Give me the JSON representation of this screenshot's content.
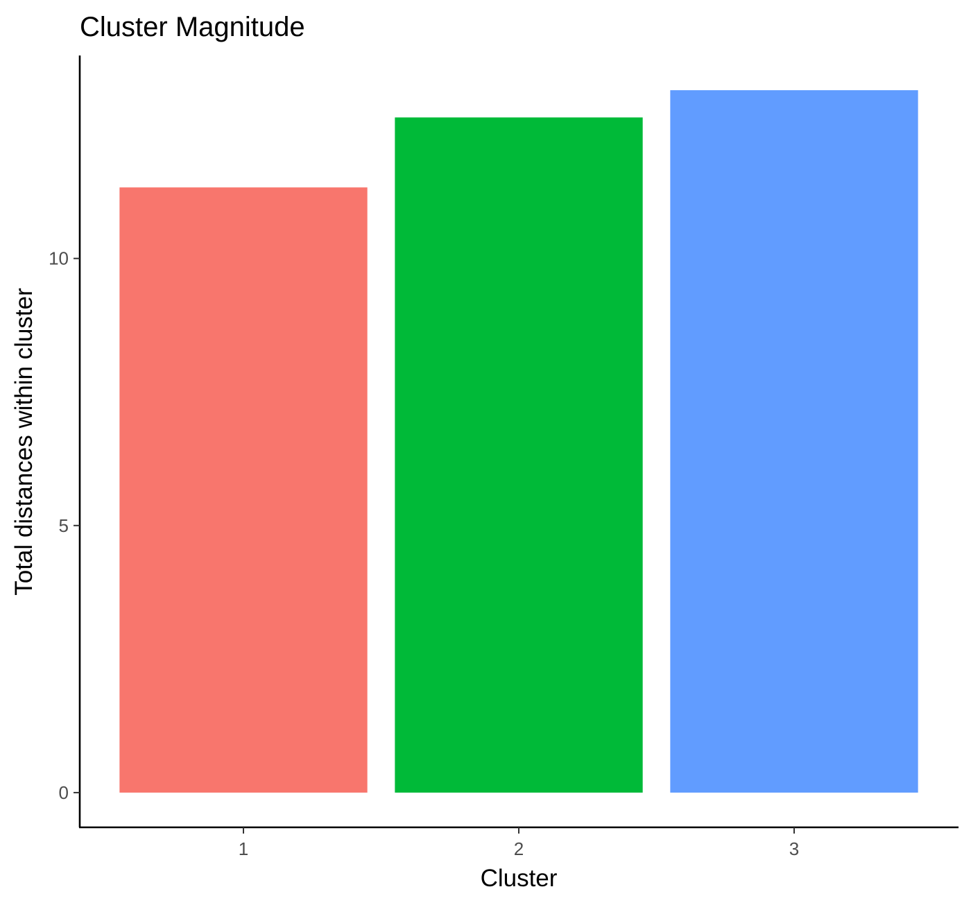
{
  "chart_data": {
    "type": "bar",
    "title": "Cluster Magnitude",
    "xlabel": "Cluster",
    "ylabel": "Total distances within cluster",
    "categories": [
      "1",
      "2",
      "3"
    ],
    "values": [
      11.33,
      12.64,
      13.15
    ],
    "colors": [
      "#F8766D",
      "#00BA38",
      "#619CFF"
    ],
    "ylim": [
      -0.65,
      13.8
    ],
    "yticks": [
      0,
      5,
      10
    ],
    "grid": false,
    "legend": "none"
  }
}
